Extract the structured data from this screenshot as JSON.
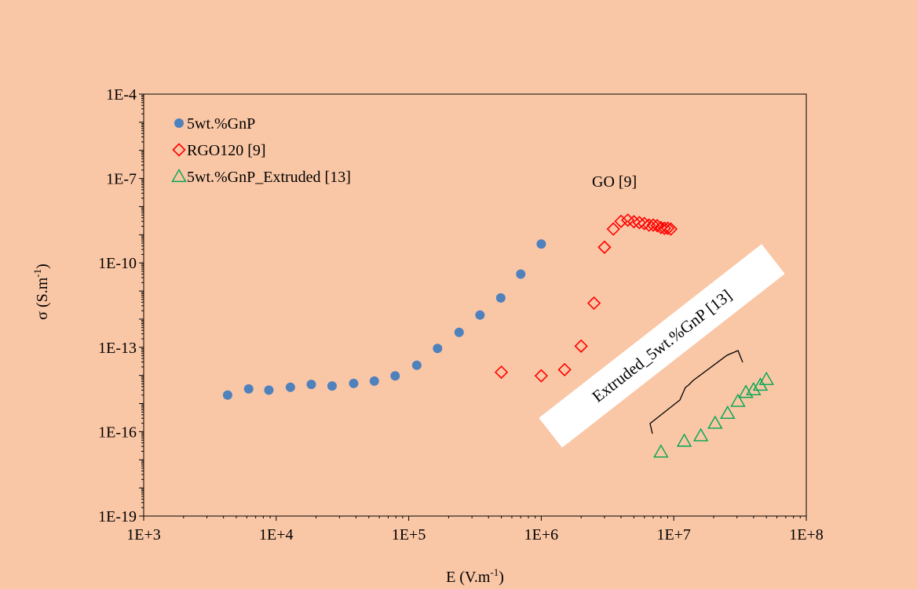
{
  "chart_data": {
    "type": "scatter",
    "x_scale": "log",
    "y_scale": "log",
    "xlim": [
      1000,
      100000000
    ],
    "ylim": [
      1e-19,
      0.0001
    ],
    "x_ticks": [
      "1E+3",
      "1E+4",
      "1E+5",
      "1E+6",
      "1E+7",
      "1E+8"
    ],
    "y_ticks": [
      "1E-19",
      "1E-16",
      "1E-13",
      "1E-10",
      "1E-7",
      "1E-4"
    ],
    "xlabel": {
      "main": "E (V.m",
      "sup": "-1",
      "close": ")"
    },
    "ylabel": {
      "main": "σ (S.m",
      "sup": "-1",
      "close": ")"
    },
    "legend_position": "top-left",
    "annotations": {
      "go": "GO [9]",
      "extruded": "Extruded_5wt.%GnP [13]"
    },
    "series": [
      {
        "name": "5wt.%GnP",
        "marker": "circle",
        "color": "#4f81bd",
        "points": [
          [
            4300,
            2e-15
          ],
          [
            6200,
            3.3e-15
          ],
          [
            8800,
            3e-15
          ],
          [
            12800,
            3.8e-15
          ],
          [
            18400,
            4.8e-15
          ],
          [
            26400,
            4.2e-15
          ],
          [
            38400,
            5.2e-15
          ],
          [
            55000,
            6.3e-15
          ],
          [
            79000,
            9.6e-15
          ],
          [
            115000,
            2.3e-14
          ],
          [
            165000,
            9.1e-14
          ],
          [
            240000,
            3.4e-13
          ],
          [
            345000,
            1.4e-12
          ],
          [
            495000,
            5.7e-12
          ],
          [
            700000,
            4e-11
          ],
          [
            1000000,
            4.7e-10
          ]
        ]
      },
      {
        "name": "RGO120 [9]",
        "marker": "diamond",
        "color": "#ff0000",
        "points": [
          [
            500000,
            1.3e-14
          ],
          [
            1000000,
            9.7e-15
          ],
          [
            1500000,
            1.6e-14
          ],
          [
            2000000,
            1.1e-13
          ],
          [
            2500000,
            3.7e-12
          ],
          [
            3000000,
            3.6e-10
          ],
          [
            3500000,
            1.6e-09
          ],
          [
            4000000,
            3e-09
          ],
          [
            4500000,
            3.3e-09
          ],
          [
            5000000,
            2.9e-09
          ],
          [
            5500000,
            2.7e-09
          ],
          [
            6000000,
            2.5e-09
          ],
          [
            6500000,
            2.2e-09
          ],
          [
            7000000,
            2.2e-09
          ],
          [
            7500000,
            2.1e-09
          ],
          [
            8000000,
            1.8e-09
          ],
          [
            8500000,
            1.7e-09
          ],
          [
            9000000,
            1.7e-09
          ],
          [
            9500000,
            1.6e-09
          ]
        ]
      },
      {
        "name": "5wt.%GnP_Extruded [13]",
        "marker": "triangle",
        "color": "#00a651",
        "points": [
          [
            8000000,
            1.9e-17
          ],
          [
            12000000,
            4.6e-17
          ],
          [
            16000000,
            7.2e-17
          ],
          [
            20500000,
            2e-16
          ],
          [
            25500000,
            4.5e-16
          ],
          [
            30500000,
            1.2e-15
          ],
          [
            35000000,
            2.5e-15
          ],
          [
            40000000,
            3.1e-15
          ],
          [
            45000000,
            4.5e-15
          ],
          [
            50000000,
            7.2e-15
          ]
        ]
      }
    ]
  }
}
